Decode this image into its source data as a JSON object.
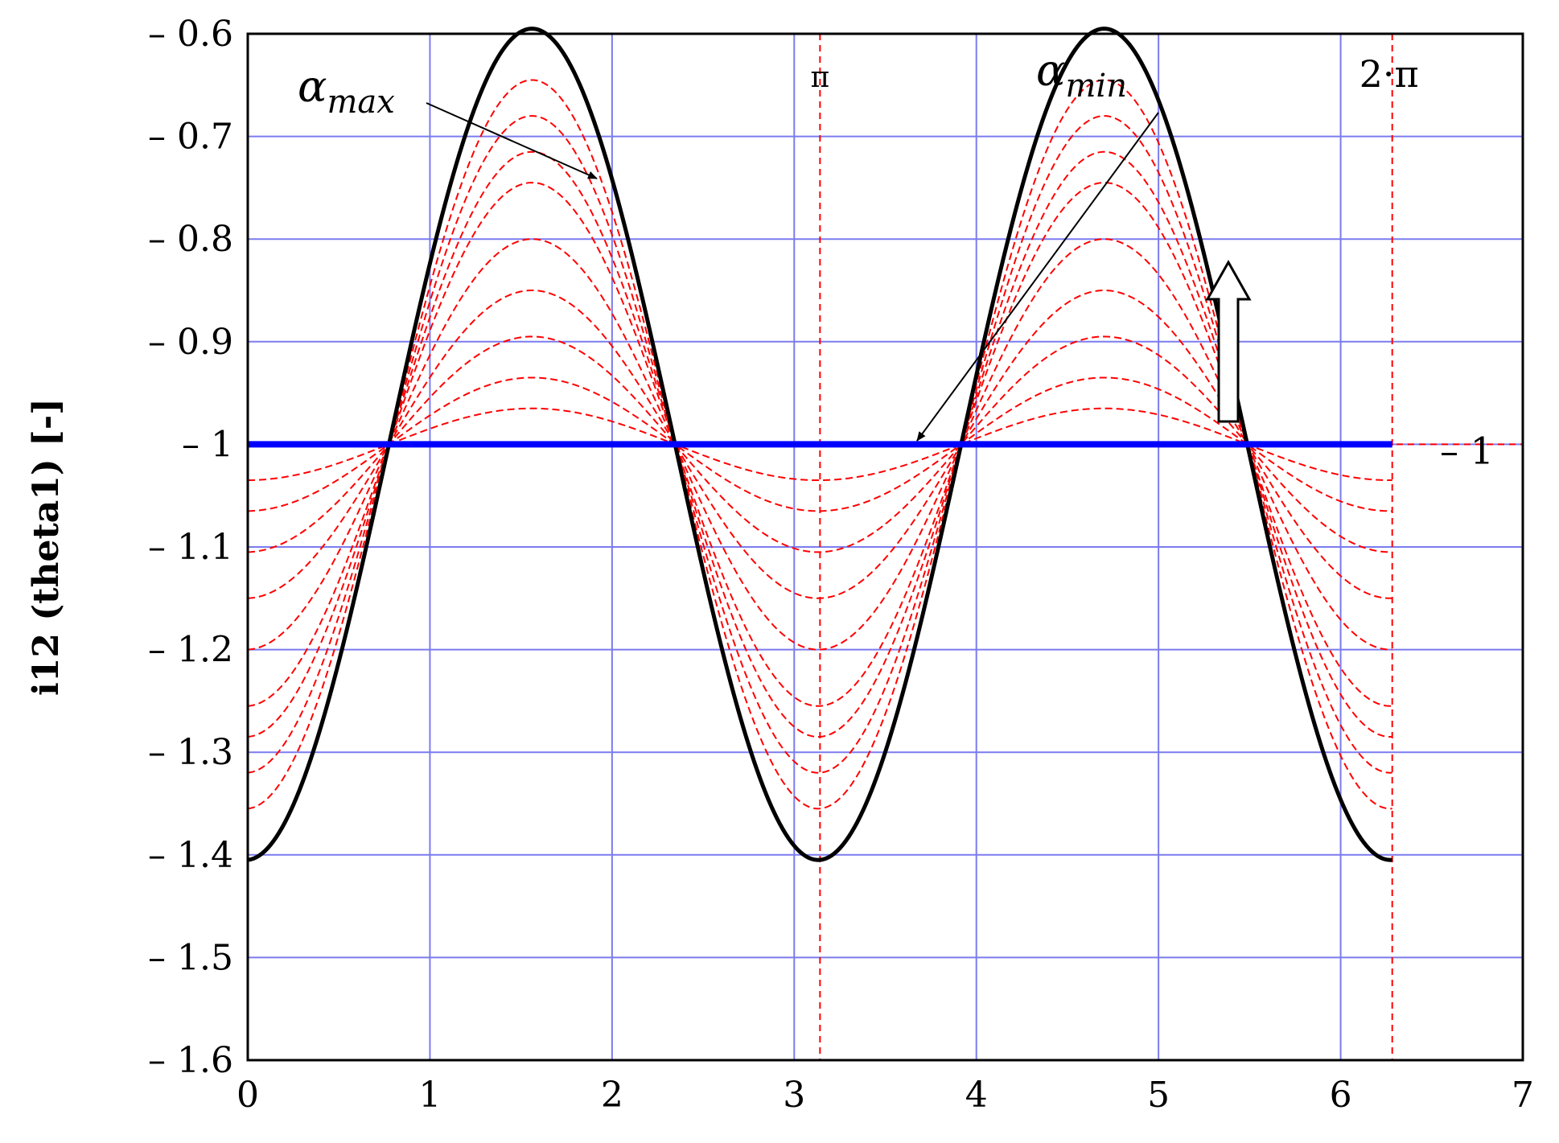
{
  "chart_data": {
    "type": "line",
    "title": "",
    "xlabel": "",
    "ylabel": "i12 (theta1) [-]",
    "xlim": [
      0,
      7
    ],
    "ylim": [
      -1.6,
      -0.6
    ],
    "grid": true,
    "x_ticks": [
      "0",
      "1",
      "2",
      "3",
      "4",
      "5",
      "6",
      "7"
    ],
    "y_ticks": [
      "– 0.6",
      "– 0.7",
      "– 0.8",
      "– 0.9",
      "– 1",
      "– 1.1",
      "– 1.2",
      "– 1.3",
      "– 1.4",
      "– 1.5",
      "– 1.6"
    ],
    "function": "i12(theta) = -1 + A * sin(2*theta - 1.55) for theta in [0, 2*pi]",
    "series": [
      {
        "amplitude": 0.405,
        "style": "solid",
        "color": "#000000"
      },
      {
        "amplitude": 0.355,
        "style": "dashed",
        "color": "#ff0000"
      },
      {
        "amplitude": 0.32,
        "style": "dashed",
        "color": "#ff0000"
      },
      {
        "amplitude": 0.285,
        "style": "dashed",
        "color": "#ff0000"
      },
      {
        "amplitude": 0.255,
        "style": "dashed",
        "color": "#ff0000"
      },
      {
        "amplitude": 0.2,
        "style": "dashed",
        "color": "#ff0000"
      },
      {
        "amplitude": 0.15,
        "style": "dashed",
        "color": "#ff0000"
      },
      {
        "amplitude": 0.105,
        "style": "dashed",
        "color": "#ff0000"
      },
      {
        "amplitude": 0.065,
        "style": "dashed",
        "color": "#ff0000"
      },
      {
        "amplitude": 0.035,
        "style": "dashed",
        "color": "#ff0000"
      },
      {
        "amplitude": 0.0,
        "style": "solid-thick",
        "color": "#0000ff"
      }
    ],
    "reference_lines": {
      "vertical": [
        {
          "x": 3.14159,
          "label": "π"
        },
        {
          "x": 6.28318,
          "label": "2·π"
        }
      ],
      "horizontal": [
        {
          "y": -1,
          "label": "– 1"
        }
      ]
    },
    "annotations": {
      "alpha_max": {
        "symbol": "α",
        "subscript": "max"
      },
      "alpha_min": {
        "symbol": "α",
        "subscript": "min"
      }
    },
    "colors": {
      "grid": "#7b7bef",
      "outer_curve": "#000000",
      "inner_curves": "#ff0000",
      "flat_line": "#0000ff",
      "reference_lines": "#ff0000"
    }
  }
}
